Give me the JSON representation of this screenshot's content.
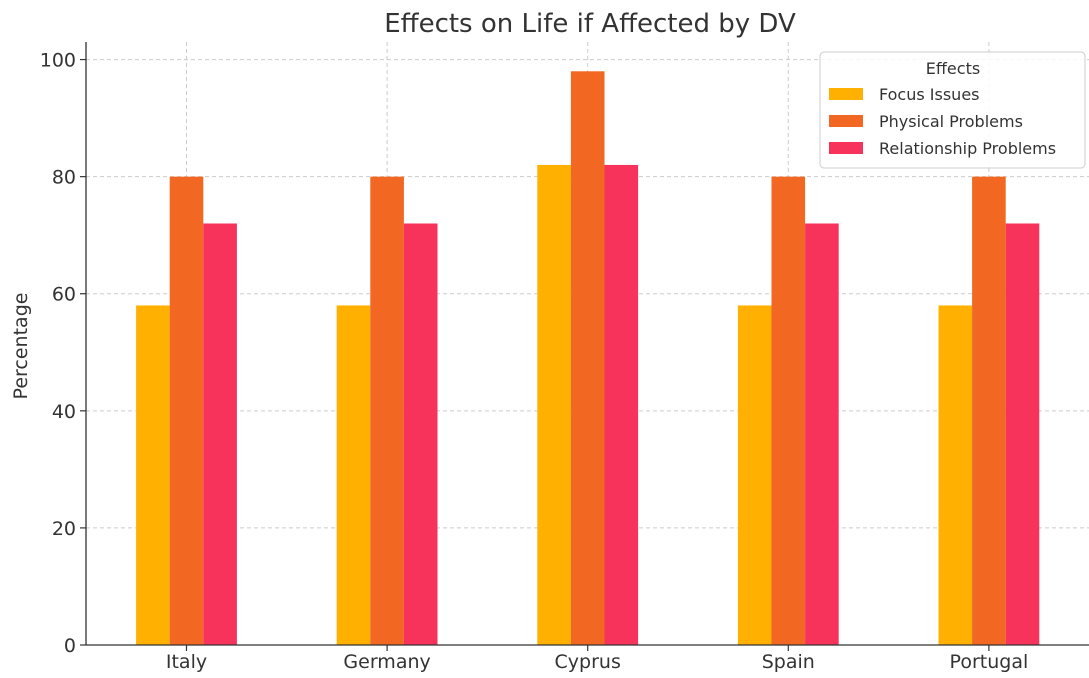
{
  "chart_data": {
    "type": "bar",
    "title": "Effects on Life if Affected by DV",
    "xlabel": "",
    "ylabel": "Percentage",
    "categories": [
      "Italy",
      "Germany",
      "Cyprus",
      "Spain",
      "Portugal"
    ],
    "series": [
      {
        "name": "Focus Issues",
        "color": "#FFB000",
        "values": [
          58,
          58,
          82,
          58,
          58
        ]
      },
      {
        "name": "Physical Problems",
        "color": "#F26722",
        "values": [
          80,
          80,
          98,
          80,
          80
        ]
      },
      {
        "name": "Relationship Problems",
        "color": "#F7325B",
        "values": [
          72,
          72,
          82,
          72,
          72
        ]
      }
    ],
    "ylim": [
      0,
      103
    ],
    "yticks": [
      0,
      20,
      40,
      60,
      80,
      100
    ],
    "grid": true,
    "legend": {
      "title": "Effects",
      "placement": "top-right"
    }
  }
}
